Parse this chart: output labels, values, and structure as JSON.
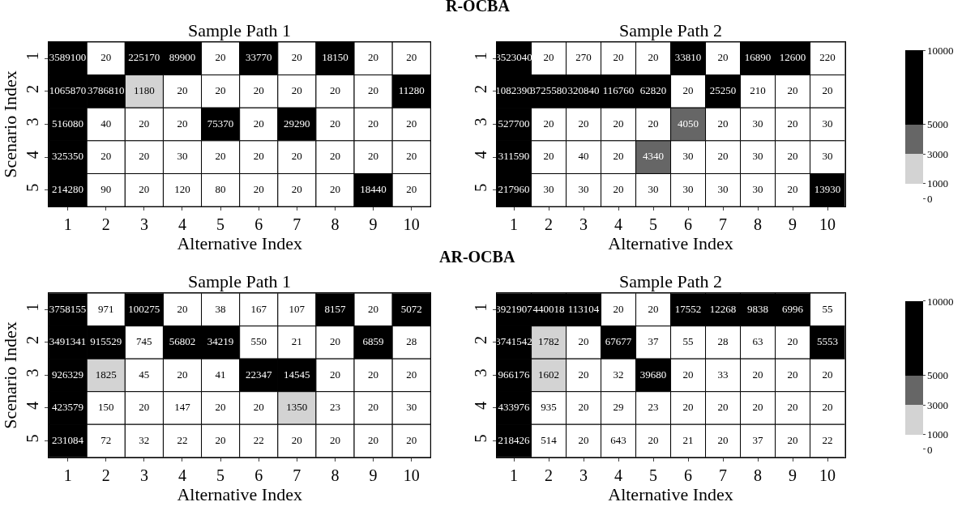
{
  "chart_data": [
    {
      "type": "heatmap",
      "title": "Sample Path 1",
      "xlabel": "Alternative Index",
      "ylabel": "Scenario Index",
      "annotations": [
        "R-OCBA"
      ],
      "categories": [
        "1",
        "2",
        "3",
        "4",
        "5",
        "6",
        "7",
        "8",
        "9",
        "10"
      ],
      "y_categories": [
        "1",
        "2",
        "3",
        "4",
        "5"
      ],
      "cells": [
        [
          3589100,
          20,
          225170,
          89900,
          20,
          33770,
          20,
          18150,
          20,
          20
        ],
        [
          1065870,
          3786810,
          1180,
          20,
          20,
          20,
          20,
          20,
          20,
          11280
        ],
        [
          516080,
          40,
          20,
          20,
          75370,
          20,
          29290,
          20,
          20,
          20
        ],
        [
          325350,
          20,
          20,
          30,
          20,
          20,
          20,
          20,
          20,
          20
        ],
        [
          214280,
          90,
          20,
          120,
          80,
          20,
          20,
          20,
          18440,
          20
        ]
      ],
      "data_labels": true
    },
    {
      "type": "heatmap",
      "title": "Sample Path 2",
      "xlabel": "Alternative Index",
      "categories": [
        "1",
        "2",
        "3",
        "4",
        "5",
        "6",
        "7",
        "8",
        "9",
        "10"
      ],
      "y_categories": [
        "1",
        "2",
        "3",
        "4",
        "5"
      ],
      "cells": [
        [
          3523040,
          20,
          270,
          20,
          20,
          33810,
          20,
          16890,
          12600,
          220
        ],
        [
          1082390,
          3725580,
          320840,
          116760,
          62820,
          20,
          25250,
          210,
          20,
          20
        ],
        [
          527700,
          20,
          20,
          20,
          20,
          4050,
          20,
          30,
          20,
          30
        ],
        [
          311590,
          20,
          40,
          20,
          4340,
          30,
          20,
          30,
          20,
          30
        ],
        [
          217960,
          30,
          30,
          20,
          30,
          30,
          30,
          30,
          20,
          13930
        ]
      ],
      "data_labels": true,
      "clim": [
        0,
        10000
      ],
      "cticks": [
        0,
        1000,
        3000,
        5000,
        10000
      ],
      "colors": [
        "#ffffff",
        "#d3d3d3",
        "#666666",
        "#000000"
      ]
    },
    {
      "type": "heatmap",
      "title": "Sample Path 1",
      "xlabel": "Alternative Index",
      "ylabel": "Scenario Index",
      "annotations": [
        "AR-OCBA"
      ],
      "categories": [
        "1",
        "2",
        "3",
        "4",
        "5",
        "6",
        "7",
        "8",
        "9",
        "10"
      ],
      "y_categories": [
        "1",
        "2",
        "3",
        "4",
        "5"
      ],
      "cells": [
        [
          3758155,
          971,
          100275,
          20,
          38,
          167,
          107,
          8157,
          20,
          5072
        ],
        [
          3491341,
          915529,
          745,
          56802,
          34219,
          550,
          21,
          20,
          6859,
          28
        ],
        [
          926329,
          1825,
          45,
          20,
          41,
          22347,
          14545,
          20,
          20,
          20
        ],
        [
          423579,
          150,
          20,
          147,
          20,
          20,
          1350,
          23,
          20,
          30
        ],
        [
          231084,
          72,
          32,
          22,
          20,
          22,
          20,
          20,
          20,
          20
        ]
      ],
      "data_labels": true
    },
    {
      "type": "heatmap",
      "title": "Sample Path 2",
      "xlabel": "Alternative Index",
      "categories": [
        "1",
        "2",
        "3",
        "4",
        "5",
        "6",
        "7",
        "8",
        "9",
        "10"
      ],
      "y_categories": [
        "1",
        "2",
        "3",
        "4",
        "5"
      ],
      "cells": [
        [
          3921907,
          440018,
          113104,
          20,
          20,
          17552,
          12268,
          9838,
          6996,
          55
        ],
        [
          3741542,
          1782,
          20,
          67677,
          37,
          55,
          28,
          63,
          20,
          5553
        ],
        [
          966176,
          1602,
          20,
          32,
          39680,
          20,
          33,
          20,
          20,
          20
        ],
        [
          433976,
          935,
          20,
          29,
          23,
          20,
          20,
          20,
          20,
          20
        ],
        [
          218426,
          514,
          20,
          643,
          20,
          21,
          20,
          37,
          20,
          22
        ]
      ],
      "data_labels": true,
      "clim": [
        0,
        10000
      ],
      "cticks": [
        0,
        1000,
        3000,
        5000,
        10000
      ],
      "colors": [
        "#ffffff",
        "#d3d3d3",
        "#666666",
        "#000000"
      ]
    }
  ]
}
